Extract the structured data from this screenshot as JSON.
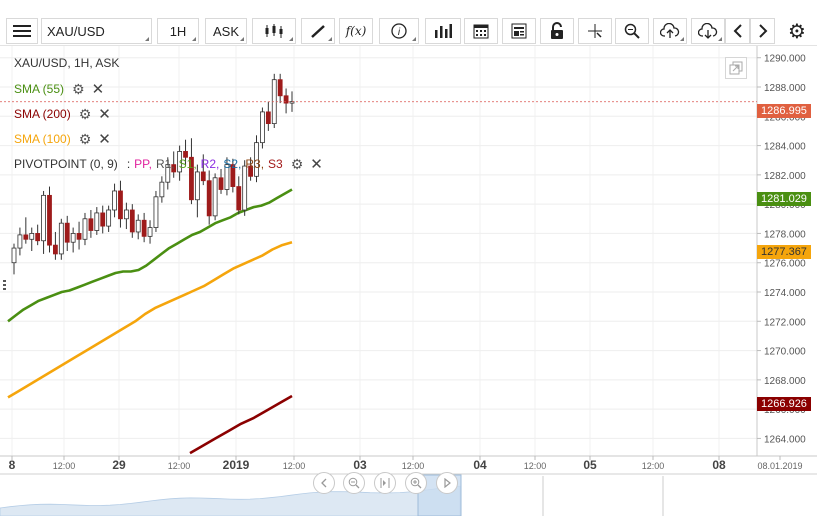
{
  "toolbar": {
    "symbol": "XAU/USD",
    "timeframe": "1H",
    "price_type": "ASK",
    "icons": [
      "menu-icon",
      "candlestick-icon",
      "draw-icon",
      "function-icon",
      "info-icon",
      "volume-icon",
      "calendar-icon",
      "template-icon",
      "lock-icon",
      "crosshair-icon",
      "zoom-icon",
      "upload-icon",
      "download-icon",
      "arrow-left-icon",
      "arrow-right-icon",
      "gear-icon"
    ],
    "function_label": "f(x)"
  },
  "legend": {
    "title": "XAU/USD, 1H, ASK",
    "sma55": "SMA (55)",
    "sma200": "SMA (200)",
    "sma100": "SMA (100)",
    "pivot": {
      "name": "PIVOTPOINT (0, 9)",
      "sep": ":",
      "items": [
        "PP,",
        "R1,",
        "S1,",
        "R2,",
        "S2,",
        "R3,",
        "S3"
      ],
      "colors": [
        "#e0219e",
        "#555555",
        "#57a31a",
        "#8a2be2",
        "#1a6ea3",
        "#8b4513",
        "#a31a1a"
      ]
    }
  },
  "colors": {
    "sma55": "#4a8f12",
    "sma200": "#8b0000",
    "sma100": "#f5a50c",
    "bull": "#4a8f12",
    "bear": "#9e1b1b",
    "last_price": "#e06040"
  },
  "price_tags": {
    "last": "1286.995",
    "sma55": "1281.029",
    "sma100": "1277.367",
    "sma200": "1266.926"
  },
  "chart_data": {
    "type": "candlestick",
    "symbol": "XAU/USD",
    "interval": "1H",
    "y_axis": {
      "min": 1262.8,
      "max": 1290.8,
      "ticks": [
        "1290.000",
        "1288.000",
        "1286.000",
        "1284.000",
        "1282.000",
        "1280.000",
        "1278.000",
        "1276.000",
        "1274.000",
        "1272.000",
        "1270.000",
        "1268.000",
        "1266.000",
        "1264.000"
      ],
      "tick_values": [
        1290,
        1288,
        1286,
        1284,
        1282,
        1280,
        1278,
        1276,
        1274,
        1272,
        1270,
        1268,
        1266,
        1264
      ]
    },
    "x_axis": {
      "labels": [
        "8",
        "12:00",
        "29",
        "12:00",
        "2019",
        "12:00",
        "03",
        "12:00",
        "04",
        "12:00",
        "05",
        "12:00",
        "08",
        "08.01.2019"
      ],
      "bold": [
        true,
        false,
        true,
        false,
        true,
        false,
        true,
        false,
        true,
        false,
        true,
        false,
        true,
        false
      ]
    },
    "last_price": 1286.995,
    "candles": [
      {
        "o": 1276.0,
        "h": 1277.3,
        "l": 1275.2,
        "c": 1277.0
      },
      {
        "o": 1277.0,
        "h": 1278.4,
        "l": 1276.5,
        "c": 1277.9
      },
      {
        "o": 1277.9,
        "h": 1279.1,
        "l": 1277.3,
        "c": 1277.6
      },
      {
        "o": 1277.6,
        "h": 1278.4,
        "l": 1276.8,
        "c": 1278.0
      },
      {
        "o": 1278.0,
        "h": 1278.6,
        "l": 1277.2,
        "c": 1277.5
      },
      {
        "o": 1277.5,
        "h": 1280.9,
        "l": 1276.6,
        "c": 1280.6
      },
      {
        "o": 1280.6,
        "h": 1281.2,
        "l": 1276.7,
        "c": 1277.2
      },
      {
        "o": 1277.2,
        "h": 1278.1,
        "l": 1276.2,
        "c": 1276.6
      },
      {
        "o": 1276.6,
        "h": 1279.0,
        "l": 1276.2,
        "c": 1278.7
      },
      {
        "o": 1278.7,
        "h": 1279.2,
        "l": 1276.8,
        "c": 1277.4
      },
      {
        "o": 1277.4,
        "h": 1278.4,
        "l": 1276.7,
        "c": 1278.0
      },
      {
        "o": 1278.0,
        "h": 1278.8,
        "l": 1276.9,
        "c": 1277.6
      },
      {
        "o": 1277.6,
        "h": 1279.4,
        "l": 1277.2,
        "c": 1279.0
      },
      {
        "o": 1279.0,
        "h": 1279.6,
        "l": 1277.7,
        "c": 1278.2
      },
      {
        "o": 1278.2,
        "h": 1279.8,
        "l": 1277.9,
        "c": 1279.4
      },
      {
        "o": 1279.4,
        "h": 1279.9,
        "l": 1278.0,
        "c": 1278.5
      },
      {
        "o": 1278.5,
        "h": 1279.9,
        "l": 1278.1,
        "c": 1279.6
      },
      {
        "o": 1279.6,
        "h": 1281.4,
        "l": 1279.1,
        "c": 1280.9
      },
      {
        "o": 1280.9,
        "h": 1281.6,
        "l": 1278.4,
        "c": 1279.0
      },
      {
        "o": 1279.0,
        "h": 1280.1,
        "l": 1278.3,
        "c": 1279.6
      },
      {
        "o": 1279.6,
        "h": 1280.0,
        "l": 1277.7,
        "c": 1278.1
      },
      {
        "o": 1278.1,
        "h": 1279.3,
        "l": 1277.6,
        "c": 1278.9
      },
      {
        "o": 1278.9,
        "h": 1279.4,
        "l": 1277.4,
        "c": 1277.8
      },
      {
        "o": 1277.8,
        "h": 1278.9,
        "l": 1277.3,
        "c": 1278.4
      },
      {
        "o": 1278.4,
        "h": 1280.9,
        "l": 1278.1,
        "c": 1280.5
      },
      {
        "o": 1280.5,
        "h": 1281.9,
        "l": 1280.1,
        "c": 1281.5
      },
      {
        "o": 1281.5,
        "h": 1283.2,
        "l": 1281.0,
        "c": 1282.7
      },
      {
        "o": 1282.7,
        "h": 1283.6,
        "l": 1281.8,
        "c": 1282.2
      },
      {
        "o": 1282.2,
        "h": 1284.0,
        "l": 1281.6,
        "c": 1283.6
      },
      {
        "o": 1283.6,
        "h": 1284.4,
        "l": 1282.6,
        "c": 1283.2
      },
      {
        "o": 1283.2,
        "h": 1284.5,
        "l": 1280.0,
        "c": 1280.3
      },
      {
        "o": 1280.3,
        "h": 1282.7,
        "l": 1279.1,
        "c": 1282.2
      },
      {
        "o": 1282.2,
        "h": 1283.4,
        "l": 1281.3,
        "c": 1281.6
      },
      {
        "o": 1281.6,
        "h": 1282.3,
        "l": 1278.6,
        "c": 1279.2
      },
      {
        "o": 1279.2,
        "h": 1282.1,
        "l": 1278.9,
        "c": 1281.8
      },
      {
        "o": 1281.8,
        "h": 1282.4,
        "l": 1280.7,
        "c": 1281.0
      },
      {
        "o": 1281.0,
        "h": 1283.2,
        "l": 1280.6,
        "c": 1282.7
      },
      {
        "o": 1282.7,
        "h": 1283.1,
        "l": 1280.8,
        "c": 1281.2
      },
      {
        "o": 1281.2,
        "h": 1281.9,
        "l": 1279.3,
        "c": 1279.6
      },
      {
        "o": 1279.6,
        "h": 1283.0,
        "l": 1279.2,
        "c": 1282.6
      },
      {
        "o": 1282.6,
        "h": 1283.2,
        "l": 1281.6,
        "c": 1281.9
      },
      {
        "o": 1281.9,
        "h": 1284.7,
        "l": 1281.5,
        "c": 1284.2
      },
      {
        "o": 1284.2,
        "h": 1286.6,
        "l": 1283.8,
        "c": 1286.3
      },
      {
        "o": 1286.3,
        "h": 1287.0,
        "l": 1285.0,
        "c": 1285.5
      },
      {
        "o": 1285.5,
        "h": 1288.9,
        "l": 1285.2,
        "c": 1288.5
      },
      {
        "o": 1288.5,
        "h": 1288.9,
        "l": 1286.9,
        "c": 1287.4
      },
      {
        "o": 1287.4,
        "h": 1287.9,
        "l": 1286.2,
        "c": 1286.9
      },
      {
        "o": 1286.9,
        "h": 1287.7,
        "l": 1286.3,
        "c": 1287.0
      }
    ],
    "series": [
      {
        "name": "SMA (55)",
        "values": [
          1272.0,
          1272.4,
          1272.8,
          1273.1,
          1273.4,
          1273.6,
          1273.8,
          1274.0,
          1274.1,
          1274.3,
          1274.5,
          1274.7,
          1274.9,
          1275.1,
          1275.3,
          1275.4,
          1275.4,
          1275.5,
          1275.8,
          1276.2,
          1276.6,
          1277.0,
          1277.3,
          1277.6,
          1277.9,
          1278.1,
          1278.4,
          1278.7,
          1278.9,
          1279.1,
          1279.4,
          1279.6,
          1279.8,
          1279.9,
          1280.1,
          1280.4,
          1280.7,
          1281.0
        ]
      },
      {
        "name": "SMA (100)",
        "values": [
          1266.8,
          1267.2,
          1267.6,
          1268.0,
          1268.4,
          1268.8,
          1269.2,
          1269.6,
          1270.0,
          1270.4,
          1270.8,
          1271.2,
          1271.6,
          1272.0,
          1272.5,
          1272.9,
          1273.2,
          1273.5,
          1273.8,
          1274.1,
          1274.4,
          1274.8,
          1275.2,
          1275.6,
          1275.9,
          1276.2,
          1276.5,
          1276.9,
          1277.2,
          1277.4
        ]
      },
      {
        "name": "SMA (200)",
        "values": [
          1263.0,
          1263.5,
          1264.0,
          1264.5,
          1265.0,
          1265.4,
          1265.9,
          1266.4,
          1266.9
        ]
      }
    ]
  }
}
